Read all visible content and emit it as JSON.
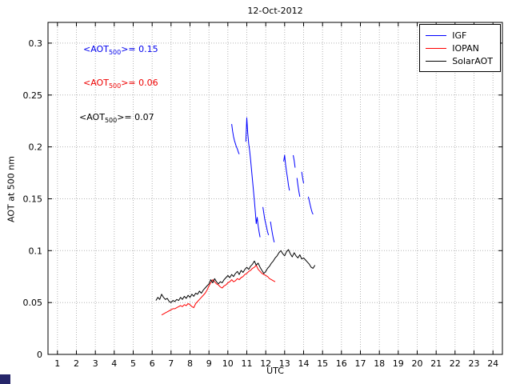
{
  "chart_data": {
    "type": "line",
    "title": "12-Oct-2012",
    "xlabel": "UTC",
    "ylabel": "AOT at 500 nm",
    "xlim": [
      0.5,
      24.5
    ],
    "ylim": [
      0,
      0.32
    ],
    "xticks": [
      1,
      2,
      3,
      4,
      5,
      6,
      7,
      8,
      9,
      10,
      11,
      12,
      13,
      14,
      15,
      16,
      17,
      18,
      19,
      20,
      21,
      22,
      23,
      24
    ],
    "yticks": [
      0,
      0.05,
      0.1,
      0.15,
      0.2,
      0.25,
      0.3
    ],
    "ytick_labels": [
      "0",
      "0.05",
      "0.1",
      "0.15",
      "0.2",
      "0.25",
      "0.3"
    ],
    "grid": true,
    "legend_position": "top-right",
    "annotations": [
      {
        "prefix": "<AOT",
        "sub": "500",
        "suffix": ">= 0.15",
        "color": "#0000ee"
      },
      {
        "prefix": "<AOT",
        "sub": "500",
        "suffix": ">= 0.06",
        "color": "#ee0000"
      },
      {
        "prefix": "<AOT",
        "sub": "500",
        "suffix": ">= 0.07",
        "color": "#000000"
      }
    ],
    "series": [
      {
        "name": "IGF",
        "color": "#0000ff",
        "segments": [
          [
            [
              10.2,
              0.222
            ],
            [
              10.25,
              0.215
            ],
            [
              10.3,
              0.21
            ],
            [
              10.35,
              0.206
            ],
            [
              10.4,
              0.203
            ],
            [
              10.45,
              0.2
            ],
            [
              10.5,
              0.198
            ],
            [
              10.55,
              0.195
            ],
            [
              10.6,
              0.193
            ]
          ],
          [
            [
              10.95,
              0.205
            ],
            [
              11.0,
              0.228
            ],
            [
              11.05,
              0.213
            ],
            [
              11.1,
              0.203
            ],
            [
              11.15,
              0.196
            ],
            [
              11.2,
              0.188
            ],
            [
              11.25,
              0.178
            ],
            [
              11.3,
              0.168
            ],
            [
              11.35,
              0.158
            ],
            [
              11.4,
              0.148
            ],
            [
              11.45,
              0.138
            ],
            [
              11.5,
              0.126
            ],
            [
              11.55,
              0.132
            ],
            [
              11.6,
              0.124
            ],
            [
              11.65,
              0.118
            ],
            [
              11.7,
              0.113
            ]
          ],
          [
            [
              11.85,
              0.142
            ],
            [
              11.9,
              0.136
            ],
            [
              11.95,
              0.13
            ],
            [
              12.0,
              0.126
            ],
            [
              12.05,
              0.122
            ],
            [
              12.1,
              0.118
            ],
            [
              12.15,
              0.115
            ]
          ],
          [
            [
              12.25,
              0.128
            ],
            [
              12.3,
              0.122
            ],
            [
              12.35,
              0.117
            ],
            [
              12.4,
              0.112
            ],
            [
              12.45,
              0.108
            ]
          ],
          [
            [
              12.95,
              0.186
            ],
            [
              13.0,
              0.192
            ],
            [
              13.05,
              0.183
            ],
            [
              13.1,
              0.176
            ],
            [
              13.15,
              0.17
            ],
            [
              13.2,
              0.163
            ],
            [
              13.25,
              0.158
            ]
          ],
          [
            [
              13.45,
              0.192
            ],
            [
              13.5,
              0.187
            ],
            [
              13.55,
              0.18
            ]
          ],
          [
            [
              13.65,
              0.17
            ],
            [
              13.7,
              0.163
            ],
            [
              13.75,
              0.157
            ],
            [
              13.8,
              0.152
            ]
          ],
          [
            [
              13.9,
              0.176
            ],
            [
              13.95,
              0.17
            ],
            [
              14.0,
              0.165
            ]
          ],
          [
            [
              14.25,
              0.152
            ],
            [
              14.3,
              0.148
            ],
            [
              14.35,
              0.144
            ],
            [
              14.4,
              0.14
            ],
            [
              14.45,
              0.137
            ],
            [
              14.5,
              0.135
            ]
          ]
        ]
      },
      {
        "name": "IOPAN",
        "color": "#ff0000",
        "segments": [
          [
            [
              6.5,
              0.038
            ],
            [
              6.6,
              0.039
            ],
            [
              6.7,
              0.04
            ],
            [
              6.8,
              0.041
            ],
            [
              6.9,
              0.042
            ],
            [
              7.0,
              0.043
            ],
            [
              7.1,
              0.044
            ],
            [
              7.2,
              0.044
            ],
            [
              7.3,
              0.045
            ],
            [
              7.4,
              0.046
            ],
            [
              7.5,
              0.047
            ],
            [
              7.6,
              0.046
            ],
            [
              7.7,
              0.048
            ],
            [
              7.8,
              0.047
            ],
            [
              7.9,
              0.049
            ],
            [
              8.0,
              0.048
            ],
            [
              8.1,
              0.046
            ],
            [
              8.2,
              0.045
            ],
            [
              8.3,
              0.049
            ],
            [
              8.4,
              0.051
            ],
            [
              8.5,
              0.053
            ],
            [
              8.6,
              0.055
            ],
            [
              8.7,
              0.057
            ],
            [
              8.8,
              0.059
            ],
            [
              8.9,
              0.062
            ],
            [
              9.0,
              0.066
            ],
            [
              9.1,
              0.069
            ],
            [
              9.2,
              0.072
            ],
            [
              9.3,
              0.07
            ],
            [
              9.4,
              0.068
            ],
            [
              9.5,
              0.067
            ],
            [
              9.6,
              0.065
            ],
            [
              9.7,
              0.064
            ],
            [
              9.8,
              0.066
            ],
            [
              9.9,
              0.067
            ],
            [
              10.0,
              0.069
            ],
            [
              10.1,
              0.07
            ],
            [
              10.2,
              0.072
            ],
            [
              10.3,
              0.07
            ],
            [
              10.4,
              0.071
            ],
            [
              10.5,
              0.073
            ],
            [
              10.6,
              0.072
            ],
            [
              10.7,
              0.074
            ],
            [
              10.8,
              0.075
            ],
            [
              10.9,
              0.077
            ],
            [
              11.0,
              0.078
            ],
            [
              11.1,
              0.08
            ],
            [
              11.2,
              0.081
            ],
            [
              11.3,
              0.083
            ],
            [
              11.4,
              0.084
            ],
            [
              11.5,
              0.086
            ],
            [
              11.6,
              0.082
            ],
            [
              11.7,
              0.08
            ],
            [
              11.8,
              0.078
            ],
            [
              11.9,
              0.077
            ],
            [
              12.0,
              0.076
            ],
            [
              12.1,
              0.075
            ],
            [
              12.2,
              0.073
            ],
            [
              12.3,
              0.072
            ],
            [
              12.4,
              0.071
            ],
            [
              12.5,
              0.07
            ]
          ]
        ]
      },
      {
        "name": "SolarAOT",
        "color": "#000000",
        "segments": [
          [
            [
              6.2,
              0.052
            ],
            [
              6.3,
              0.055
            ],
            [
              6.4,
              0.053
            ],
            [
              6.5,
              0.058
            ],
            [
              6.6,
              0.055
            ],
            [
              6.7,
              0.053
            ],
            [
              6.8,
              0.054
            ],
            [
              6.9,
              0.051
            ],
            [
              7.0,
              0.05
            ],
            [
              7.1,
              0.052
            ],
            [
              7.2,
              0.051
            ],
            [
              7.3,
              0.053
            ],
            [
              7.4,
              0.052
            ],
            [
              7.5,
              0.055
            ],
            [
              7.6,
              0.053
            ],
            [
              7.7,
              0.056
            ],
            [
              7.8,
              0.054
            ],
            [
              7.9,
              0.057
            ],
            [
              8.0,
              0.055
            ],
            [
              8.1,
              0.058
            ],
            [
              8.2,
              0.056
            ],
            [
              8.3,
              0.059
            ],
            [
              8.4,
              0.058
            ],
            [
              8.5,
              0.061
            ],
            [
              8.6,
              0.059
            ],
            [
              8.7,
              0.062
            ],
            [
              8.8,
              0.064
            ],
            [
              8.9,
              0.066
            ],
            [
              9.0,
              0.068
            ],
            [
              9.1,
              0.072
            ],
            [
              9.2,
              0.069
            ],
            [
              9.3,
              0.073
            ],
            [
              9.4,
              0.07
            ],
            [
              9.5,
              0.068
            ],
            [
              9.6,
              0.07
            ],
            [
              9.7,
              0.069
            ],
            [
              9.8,
              0.072
            ],
            [
              9.9,
              0.074
            ],
            [
              10.0,
              0.076
            ],
            [
              10.1,
              0.074
            ],
            [
              10.2,
              0.077
            ],
            [
              10.3,
              0.075
            ],
            [
              10.4,
              0.078
            ],
            [
              10.5,
              0.08
            ],
            [
              10.6,
              0.077
            ],
            [
              10.7,
              0.081
            ],
            [
              10.8,
              0.079
            ],
            [
              10.9,
              0.082
            ],
            [
              11.0,
              0.084
            ],
            [
              11.1,
              0.082
            ],
            [
              11.2,
              0.085
            ],
            [
              11.3,
              0.087
            ],
            [
              11.4,
              0.09
            ],
            [
              11.5,
              0.086
            ],
            [
              11.6,
              0.088
            ],
            [
              11.7,
              0.084
            ],
            [
              11.8,
              0.081
            ],
            [
              11.9,
              0.078
            ],
            [
              12.0,
              0.08
            ],
            [
              12.1,
              0.083
            ],
            [
              12.2,
              0.085
            ],
            [
              12.3,
              0.088
            ],
            [
              12.4,
              0.09
            ],
            [
              12.5,
              0.093
            ],
            [
              12.6,
              0.095
            ],
            [
              12.7,
              0.098
            ],
            [
              12.8,
              0.1
            ],
            [
              12.9,
              0.097
            ],
            [
              13.0,
              0.095
            ],
            [
              13.1,
              0.099
            ],
            [
              13.2,
              0.101
            ],
            [
              13.3,
              0.097
            ],
            [
              13.4,
              0.094
            ],
            [
              13.5,
              0.098
            ],
            [
              13.6,
              0.095
            ],
            [
              13.7,
              0.093
            ],
            [
              13.8,
              0.096
            ],
            [
              13.9,
              0.092
            ],
            [
              14.0,
              0.093
            ],
            [
              14.1,
              0.091
            ],
            [
              14.2,
              0.089
            ],
            [
              14.3,
              0.087
            ],
            [
              14.4,
              0.084
            ],
            [
              14.5,
              0.083
            ],
            [
              14.6,
              0.086
            ]
          ]
        ]
      }
    ]
  }
}
